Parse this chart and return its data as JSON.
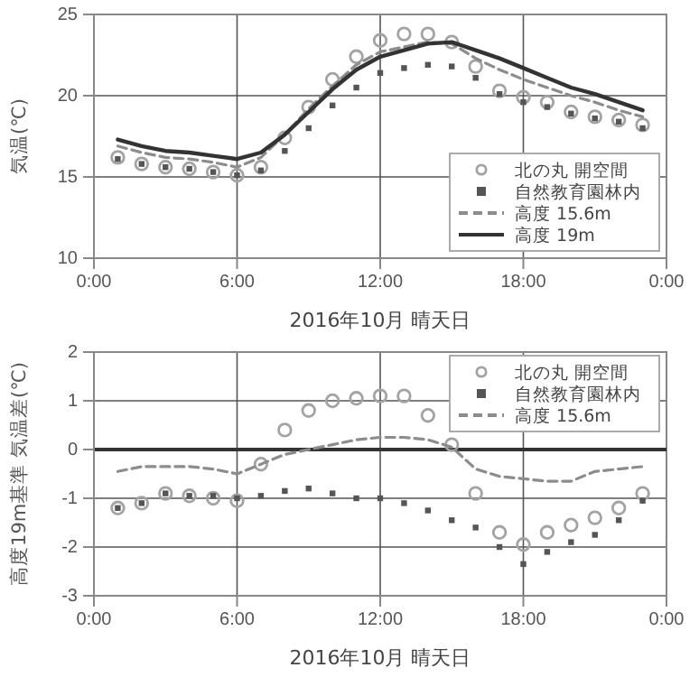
{
  "chart_data": [
    {
      "type": "line",
      "xlabel": "2016年10月 晴天日",
      "ylabel": "気温(℃)",
      "x": [
        1,
        2,
        3,
        4,
        5,
        6,
        7,
        8,
        9,
        10,
        11,
        12,
        13,
        14,
        15,
        16,
        17,
        18,
        19,
        20,
        21,
        22,
        23
      ],
      "xlim": [
        0,
        24
      ],
      "xticks": [
        {
          "value": 0,
          "label": "0:00"
        },
        {
          "value": 6,
          "label": "6:00"
        },
        {
          "value": 12,
          "label": "12:00"
        },
        {
          "value": 18,
          "label": "18:00"
        },
        {
          "value": 24,
          "label": "0:00"
        }
      ],
      "ylim": [
        10,
        25
      ],
      "yticks": [
        10,
        15,
        20,
        25
      ],
      "grid": true,
      "legend": "bottom right",
      "series": [
        {
          "name": "北の丸 開空間",
          "type": "scatter",
          "marker": "circle",
          "color": "#a3a3a3",
          "values": [
            16.2,
            15.8,
            15.6,
            15.5,
            15.3,
            15.1,
            15.6,
            17.4,
            19.3,
            21.0,
            22.4,
            23.4,
            23.8,
            23.8,
            23.3,
            21.8,
            20.3,
            19.9,
            19.6,
            19.0,
            18.7,
            18.5,
            18.2
          ]
        },
        {
          "name": "自然教育園林内",
          "type": "scatter",
          "marker": "square",
          "color": "#555555",
          "values": [
            16.1,
            15.8,
            15.6,
            15.5,
            15.3,
            15.1,
            15.4,
            16.6,
            18.0,
            19.4,
            20.5,
            21.4,
            21.7,
            21.9,
            21.8,
            21.1,
            20.1,
            19.6,
            19.3,
            18.9,
            18.6,
            18.4,
            18.0
          ]
        },
        {
          "name": "高度 15.6m",
          "type": "line",
          "line_style": "dashed",
          "color": "#8c8c8c",
          "values": [
            16.9,
            16.5,
            16.2,
            16.1,
            15.9,
            15.6,
            16.2,
            17.6,
            19.2,
            20.6,
            21.9,
            22.7,
            23.0,
            23.3,
            23.2,
            22.3,
            21.6,
            21.0,
            20.5,
            20.0,
            19.6,
            19.1,
            18.7
          ]
        },
        {
          "name": "高度 19m",
          "type": "line",
          "line_style": "solid",
          "color": "#333333",
          "values": [
            17.3,
            16.9,
            16.6,
            16.5,
            16.3,
            16.1,
            16.5,
            17.6,
            19.0,
            20.4,
            21.6,
            22.4,
            22.8,
            23.2,
            23.3,
            22.8,
            22.3,
            21.7,
            21.1,
            20.5,
            20.1,
            19.6,
            19.1
          ]
        }
      ]
    },
    {
      "type": "line",
      "xlabel": "2016年10月 晴天日",
      "ylabel": "高度19m基準 気温差(℃)",
      "x": [
        1,
        2,
        3,
        4,
        5,
        6,
        7,
        8,
        9,
        10,
        11,
        12,
        13,
        14,
        15,
        16,
        17,
        18,
        19,
        20,
        21,
        22,
        23
      ],
      "xlim": [
        0,
        24
      ],
      "xticks": [
        {
          "value": 0,
          "label": "0:00"
        },
        {
          "value": 6,
          "label": "6:00"
        },
        {
          "value": 12,
          "label": "12:00"
        },
        {
          "value": 18,
          "label": "18:00"
        },
        {
          "value": 24,
          "label": "0:00"
        }
      ],
      "ylim": [
        -3,
        2
      ],
      "yticks": [
        -3,
        -2,
        -1,
        0,
        1,
        2
      ],
      "grid": true,
      "legend": "top right",
      "ref_lines": [
        {
          "axis": "y",
          "value": 0,
          "color": "#333333"
        }
      ],
      "series": [
        {
          "name": "北の丸 開空間",
          "type": "scatter",
          "marker": "circle",
          "color": "#a3a3a3",
          "values": [
            -1.2,
            -1.1,
            -0.9,
            -0.95,
            -1.0,
            -1.05,
            -0.3,
            0.4,
            0.8,
            1.0,
            1.05,
            1.1,
            1.1,
            0.7,
            0.1,
            -0.9,
            -1.7,
            -1.95,
            -1.7,
            -1.55,
            -1.4,
            -1.2,
            -0.9
          ]
        },
        {
          "name": "自然教育園林内",
          "type": "scatter",
          "marker": "square",
          "color": "#555555",
          "values": [
            -1.2,
            -1.1,
            -0.9,
            -0.95,
            -0.95,
            -1.0,
            -0.95,
            -0.85,
            -0.8,
            -0.9,
            -1.0,
            -1.0,
            -1.1,
            -1.25,
            -1.45,
            -1.6,
            -2.0,
            -2.35,
            -2.1,
            -1.9,
            -1.75,
            -1.45,
            -1.05
          ]
        },
        {
          "name": "高度 15.6m",
          "type": "line",
          "line_style": "dashed",
          "color": "#8c8c8c",
          "values": [
            -0.45,
            -0.35,
            -0.35,
            -0.35,
            -0.4,
            -0.5,
            -0.3,
            -0.1,
            0,
            0.1,
            0.2,
            0.25,
            0.25,
            0.2,
            0.05,
            -0.4,
            -0.55,
            -0.6,
            -0.65,
            -0.65,
            -0.45,
            -0.4,
            -0.35
          ]
        }
      ]
    }
  ]
}
